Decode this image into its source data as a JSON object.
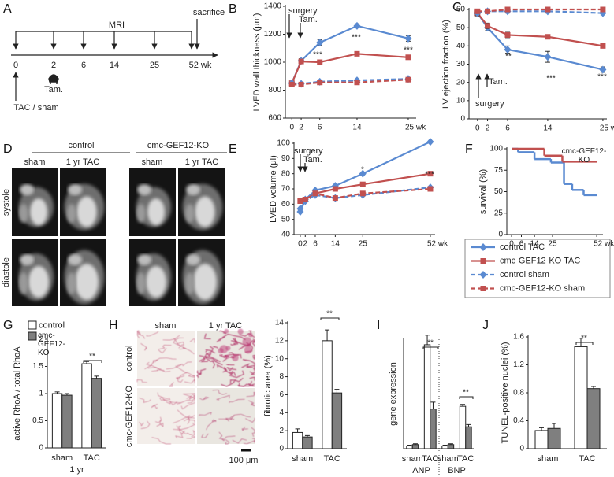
{
  "timeline": {
    "label": "A",
    "title": "MRI",
    "end": "sacrifice",
    "ticks": [
      "0",
      "2",
      "6",
      "14",
      "25",
      "52 wk"
    ],
    "drug": "Tam.",
    "start": "TAC / sham"
  },
  "mri": {
    "label": "D",
    "groups": [
      "control",
      "cmc-GEF12-KO"
    ],
    "columns": [
      "sham",
      "1 yr TAC",
      "sham",
      "1 yr TAC"
    ],
    "rows": [
      "systole",
      "diastole"
    ]
  },
  "histology": {
    "columns": [
      "sham",
      "1 yr TAC"
    ],
    "rows": [
      "control",
      "cmc-GEF12-KO"
    ],
    "scale_bar": "100 μm"
  },
  "chart_data": [
    {
      "type": "line",
      "label": "B",
      "ylabel": "LVED wall thickness (μm)",
      "x": [
        0,
        2,
        6,
        14,
        25
      ],
      "xlim": [
        -1.4,
        26.7
      ],
      "xticks": [
        0,
        2,
        6,
        14,
        {
          "value": 25,
          "label": "25 wk"
        }
      ],
      "ylim": [
        600,
        1400
      ],
      "yticks": [
        600,
        800,
        1000,
        1200,
        1400
      ],
      "series": [
        {
          "color": "#5a8ad1",
          "marker": "diamond",
          "dash": false,
          "values": [
            850,
            1010,
            1140,
            1260,
            1170
          ],
          "errors": [
            10,
            15,
            20,
            15,
            20
          ]
        },
        {
          "color": "#c1504f",
          "marker": "square",
          "dash": false,
          "values": [
            850,
            1005,
            1000,
            1060,
            1035
          ],
          "errors": [
            10,
            15,
            12,
            10,
            15
          ]
        },
        {
          "color": "#5a8ad1",
          "marker": "diamond",
          "dash": true,
          "values": [
            850,
            845,
            860,
            870,
            880
          ],
          "errors": [
            8,
            8,
            8,
            8,
            8
          ]
        },
        {
          "color": "#c1504f",
          "marker": "square",
          "dash": true,
          "values": [
            840,
            840,
            855,
            855,
            875
          ],
          "errors": [
            8,
            8,
            8,
            8,
            8
          ]
        }
      ],
      "annotations": [
        "surgery",
        "Tam.",
        "***",
        "***",
        "***"
      ]
    },
    {
      "type": "line",
      "label": "C",
      "ylabel": "LV ejection fraction (%)",
      "x": [
        0,
        2,
        6,
        14,
        25
      ],
      "xlim": [
        -1.7,
        25.8
      ],
      "xticks": [
        0,
        2,
        6,
        14,
        {
          "value": 25,
          "label": "25 wk"
        }
      ],
      "ylim": [
        0,
        60
      ],
      "yticks": [
        0,
        10,
        20,
        30,
        40,
        50,
        60
      ],
      "series": [
        {
          "color": "#5a8ad1",
          "marker": "diamond",
          "dash": false,
          "values": [
            58,
            50,
            38,
            34,
            27
          ],
          "errors": [
            1.5,
            1.5,
            2,
            3,
            1.5
          ]
        },
        {
          "color": "#c1504f",
          "marker": "square",
          "dash": false,
          "values": [
            58,
            51,
            46,
            45,
            40
          ],
          "errors": [
            1.5,
            1.5,
            1.5,
            1,
            1
          ]
        },
        {
          "color": "#5a8ad1",
          "marker": "diamond",
          "dash": true,
          "values": [
            58,
            59,
            59,
            59,
            58
          ],
          "errors": [
            1,
            1,
            1,
            1,
            1
          ]
        },
        {
          "color": "#c1504f",
          "marker": "square",
          "dash": true,
          "values": [
            59,
            59,
            60,
            60,
            60
          ],
          "errors": [
            1,
            1,
            1,
            1,
            1
          ]
        }
      ],
      "annotations": [
        "surgery",
        "Tam.",
        "**",
        "***",
        "***"
      ]
    },
    {
      "type": "line",
      "label": "E",
      "ylabel": "LVED volume (μl)",
      "x": [
        0,
        2,
        6,
        14,
        25,
        52
      ],
      "xlim": [
        -2.5,
        53.9
      ],
      "xticks": [
        0,
        2,
        6,
        14,
        25,
        {
          "value": 52,
          "label": "52 wk"
        }
      ],
      "ylim": [
        40,
        100
      ],
      "yticks": [
        40,
        50,
        60,
        70,
        80,
        90,
        100
      ],
      "series": [
        {
          "name": "control TAC",
          "color": "#5a8ad1",
          "marker": "diamond",
          "dash": false,
          "values": [
            55,
            63,
            69,
            72,
            80,
            101
          ]
        },
        {
          "name": "cmc-GEF12-KO TAC",
          "color": "#c1504f",
          "marker": "square",
          "dash": false,
          "values": [
            62,
            63,
            67,
            70,
            73,
            80
          ]
        },
        {
          "name": "control sham",
          "color": "#5a8ad1",
          "marker": "diamond",
          "dash": true,
          "values": [
            57,
            62,
            66,
            64,
            66,
            71
          ]
        },
        {
          "name": "cmc-GEF12-KO sham",
          "color": "#c1504f",
          "marker": "square",
          "dash": true,
          "values": [
            62,
            63,
            67,
            64,
            67,
            70
          ]
        }
      ],
      "annotations": [
        "surgery",
        "Tam.",
        "*",
        "***"
      ]
    },
    {
      "type": "step",
      "label": "F",
      "ylabel": "survival (%)",
      "xlim": [
        -2.9,
        55.8
      ],
      "xticks": [
        0,
        6,
        14,
        25,
        {
          "value": 52,
          "label": "52 wk"
        }
      ],
      "ylim": [
        0,
        100
      ],
      "yticks": [
        0,
        25,
        50,
        75,
        100
      ],
      "series": [
        {
          "color": "#5a8ad1",
          "x": [
            0,
            4,
            14,
            24,
            32,
            37,
            44,
            52
          ],
          "values": [
            100,
            96,
            88,
            84,
            59,
            52,
            46,
            46
          ]
        },
        {
          "color": "#c1504f",
          "x": [
            0,
            20,
            31,
            52
          ],
          "values": [
            100,
            92,
            85,
            85
          ]
        }
      ],
      "annotations": [
        "cmc-GEF12-KO"
      ]
    },
    {
      "type": "bar",
      "label": "G",
      "ylabel": "active RhoA / total RhoA",
      "xlabel": "1 yr",
      "categories": [
        "sham",
        "TAC"
      ],
      "ylim": [
        0,
        2
      ],
      "yticks": [
        0,
        0.5,
        1,
        1.5,
        2
      ],
      "series": [
        {
          "name": "control",
          "color": "#ffffff",
          "values": [
            1.0,
            1.55
          ],
          "errors": [
            0.03,
            0.04
          ]
        },
        {
          "name": "cmc-GEF12-KO",
          "color": "#7f7f7f",
          "values": [
            0.97,
            1.28
          ],
          "errors": [
            0.03,
            0.04
          ]
        }
      ],
      "annotations": [
        "**"
      ]
    },
    {
      "type": "bar",
      "label": "H",
      "ylabel": "fibrotic area (%)",
      "categories": [
        "sham",
        "TAC"
      ],
      "ylim": [
        0,
        14
      ],
      "yticks": [
        0,
        2,
        4,
        6,
        8,
        10,
        12,
        14
      ],
      "series": [
        {
          "color": "#ffffff",
          "values": [
            1.8,
            12.0
          ],
          "errors": [
            0.4,
            1.2
          ]
        },
        {
          "color": "#7f7f7f",
          "values": [
            1.3,
            6.2
          ],
          "errors": [
            0.15,
            0.4
          ]
        }
      ],
      "annotations": [
        "**"
      ]
    },
    {
      "type": "bar",
      "label": "I",
      "ylabel": "gene expression",
      "categories": [
        "sham",
        "TAC",
        "sham",
        "TAC"
      ],
      "groups": [
        "ANP",
        "BNP"
      ],
      "ylim": [
        0,
        40
      ],
      "series": [
        {
          "color": "#ffffff",
          "values": [
            1.0,
            38,
            1.0,
            15.5
          ],
          "errors": [
            0.3,
            3.5,
            0.3,
            0.7
          ]
        },
        {
          "color": "#7f7f7f",
          "values": [
            1.5,
            14.5,
            1.5,
            8
          ],
          "errors": [
            0.3,
            2.5,
            0.3,
            0.8
          ]
        }
      ],
      "annotations": [
        "**",
        "**"
      ]
    },
    {
      "type": "bar",
      "label": "J",
      "ylabel": "TUNEL-positive nuclei (%)",
      "categories": [
        "sham",
        "TAC"
      ],
      "ylim": [
        0,
        1.6
      ],
      "yticks": [
        0,
        0.4,
        0.8,
        1.2,
        1.6
      ],
      "series": [
        {
          "color": "#ffffff",
          "values": [
            0.26,
            1.46
          ],
          "errors": [
            0.04,
            0.12
          ]
        },
        {
          "color": "#7f7f7f",
          "values": [
            0.29,
            0.86
          ],
          "errors": [
            0.07,
            0.03
          ]
        }
      ],
      "annotations": [
        "**"
      ]
    }
  ]
}
